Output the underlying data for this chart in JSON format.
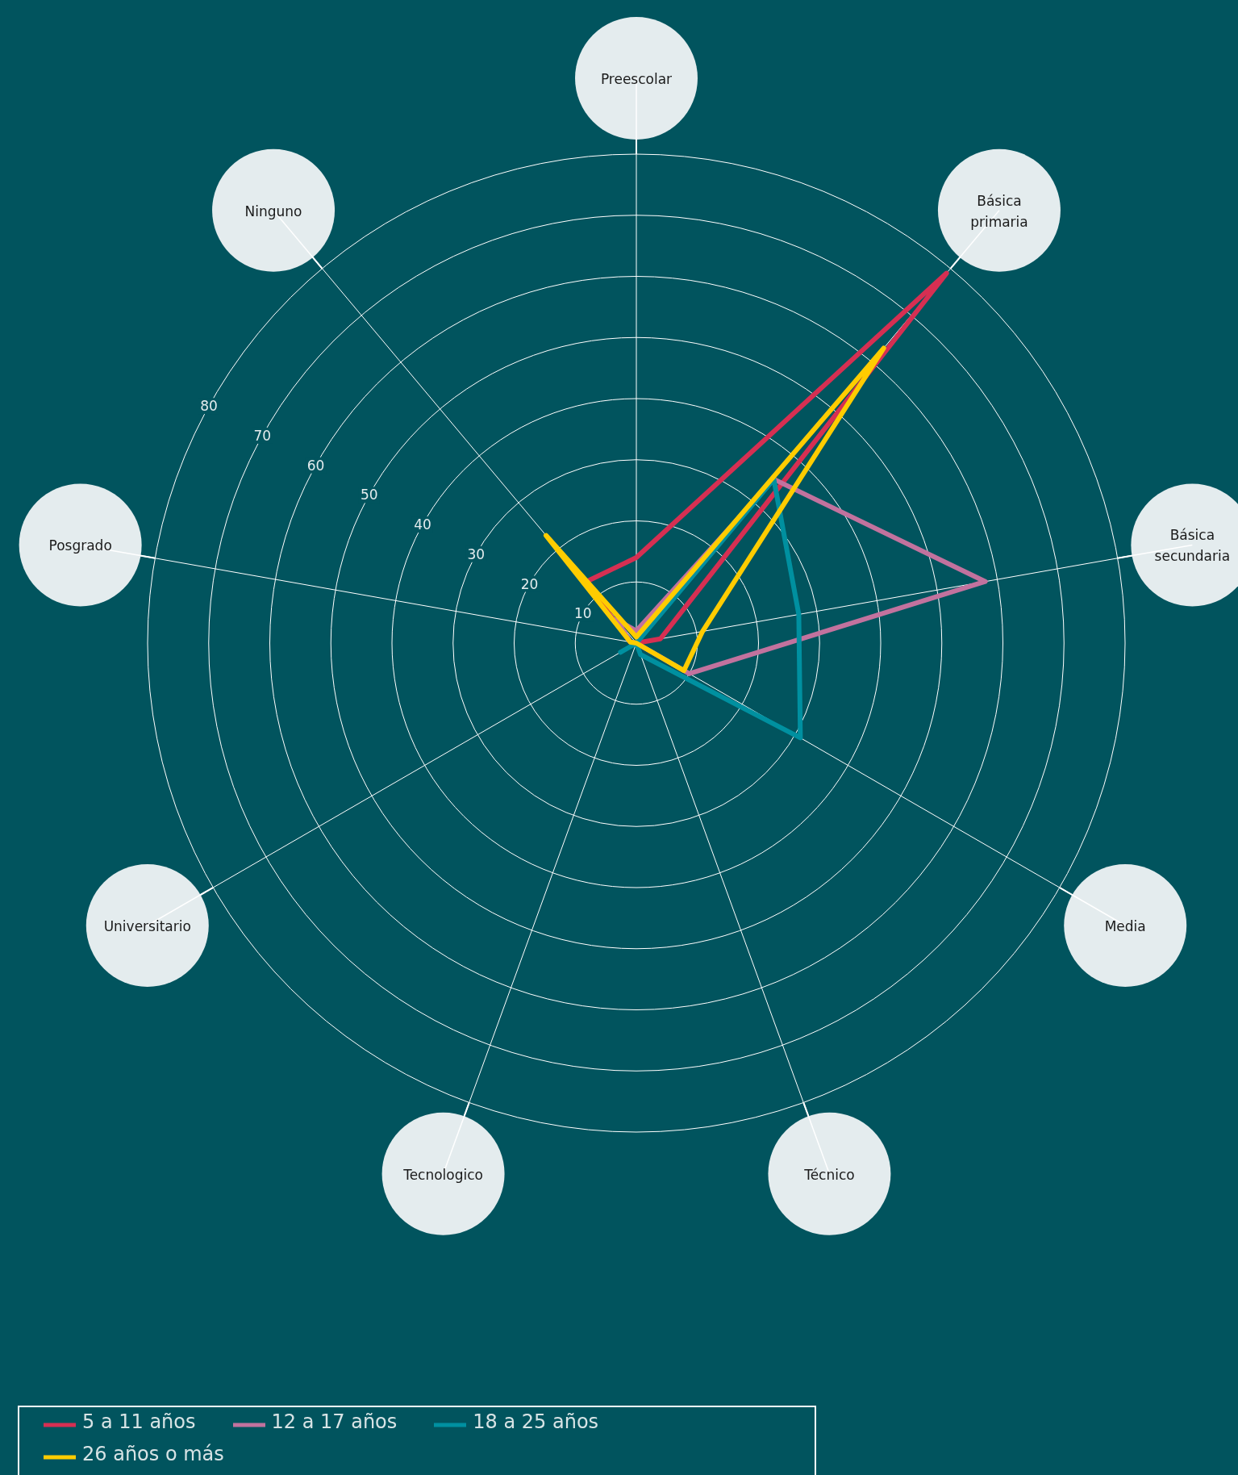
{
  "chart_data": {
    "type": "radar",
    "categories": [
      "Preescolar",
      "Básica primaria",
      "Básica secundaria",
      "Media",
      "Técnico",
      "Tecnologico",
      "Universitario",
      "Posgrado",
      "Ninguno"
    ],
    "series": [
      {
        "name": "5 a 11 años",
        "color": "#d62f52",
        "values": [
          14,
          79,
          4,
          0,
          0,
          0,
          0,
          1,
          13
        ]
      },
      {
        "name": "12 a 17 años",
        "color": "#c2729e",
        "values": [
          2,
          35,
          58,
          10,
          0,
          0,
          0,
          1,
          5
        ]
      },
      {
        "name": "18 a 25 años",
        "color": "#0090a0",
        "values": [
          0,
          35,
          27,
          31,
          2,
          0,
          3,
          0,
          0
        ]
      },
      {
        "name": "26 años o más",
        "color": "#ffcc00",
        "values": [
          1,
          63,
          11,
          9,
          0,
          0,
          0,
          1,
          23
        ]
      }
    ],
    "ylim": [
      0,
      80
    ],
    "yticks": [
      10,
      20,
      30,
      40,
      50,
      60,
      70,
      80
    ],
    "grid": true,
    "legend": "bottom left",
    "marker": "none",
    "line_style": "solid"
  }
}
